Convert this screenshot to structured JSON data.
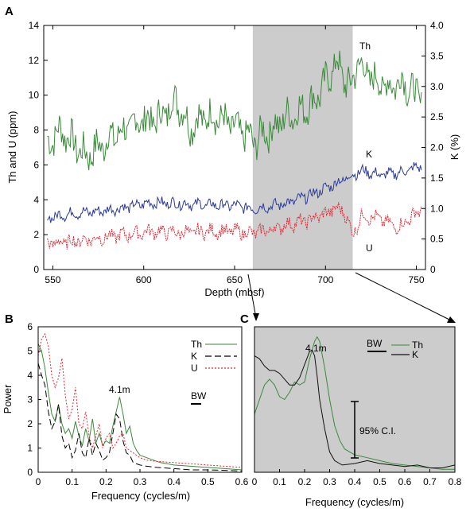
{
  "colors": {
    "th": "#3a8a3a",
    "k_a": "#2a3a9a",
    "k_c": "#111111",
    "u": "#e8242e",
    "shade": "#cccccc",
    "black": "#000000"
  },
  "chart_data": [
    {
      "panel": "A",
      "type": "line",
      "xlabel": "Depth (mbsf)",
      "ylabel": "Th and U (ppm)",
      "y2label": "K (%)",
      "xlim": [
        545,
        755
      ],
      "ylim": [
        0,
        14
      ],
      "y2lim": [
        0,
        4.0
      ],
      "xticks": [
        550,
        600,
        650,
        700,
        750
      ],
      "yticks": [
        0,
        2,
        4,
        6,
        8,
        10,
        12,
        14
      ],
      "y2ticks": [
        "0",
        "0.5",
        "1.0",
        "1.5",
        "2.0",
        "2.5",
        "3.0",
        "3.5",
        "4.0"
      ],
      "shaded_interval": [
        660,
        715
      ],
      "series": [
        {
          "name": "Th",
          "axis": "left",
          "color_key": "th",
          "x": [
            547,
            555,
            562,
            568,
            575,
            582,
            590,
            598,
            605,
            612,
            618,
            625,
            632,
            640,
            646,
            652,
            658,
            661,
            665,
            670,
            678,
            686,
            694,
            700,
            706,
            710,
            714,
            718,
            722,
            728,
            735,
            742,
            748,
            753
          ],
          "y": [
            7.3,
            8.0,
            7.2,
            6.5,
            7.0,
            7.6,
            8.0,
            8.6,
            8.5,
            9.0,
            9.8,
            8.2,
            8.7,
            8.8,
            8.4,
            8.0,
            7.6,
            7.3,
            7.8,
            8.0,
            8.7,
            9.1,
            9.7,
            10.7,
            11.9,
            11.0,
            10.4,
            12.0,
            11.3,
            10.8,
            10.5,
            10.9,
            10.2,
            9.8
          ]
        },
        {
          "name": "K",
          "axis": "right",
          "color_key": "k_a",
          "x": [
            547,
            560,
            575,
            590,
            605,
            620,
            635,
            650,
            660,
            670,
            680,
            690,
            700,
            710,
            720,
            730,
            740,
            753
          ],
          "y": [
            0.85,
            0.92,
            0.95,
            1.02,
            1.1,
            1.08,
            1.06,
            1.05,
            1.0,
            1.04,
            1.1,
            1.2,
            1.33,
            1.48,
            1.62,
            1.55,
            1.58,
            1.7
          ]
        },
        {
          "name": "U",
          "axis": "left",
          "color_key": "u",
          "x": [
            547,
            560,
            575,
            590,
            605,
            620,
            635,
            650,
            660,
            670,
            680,
            690,
            700,
            705,
            710,
            715,
            720,
            730,
            740,
            753
          ],
          "y": [
            1.5,
            1.6,
            1.8,
            2.0,
            2.2,
            2.1,
            2.2,
            2.2,
            2.1,
            2.3,
            2.6,
            2.8,
            3.2,
            3.5,
            3.4,
            2.0,
            3.1,
            2.9,
            2.4,
            3.5
          ]
        }
      ],
      "series_labels": [
        "Th",
        "K",
        "U"
      ]
    },
    {
      "panel": "B",
      "type": "line",
      "xlabel": "Frequency (cycles/m)",
      "ylabel": "Power",
      "xlim": [
        0,
        0.6
      ],
      "ylim": [
        0,
        6
      ],
      "xticks": [
        "0",
        "0.1",
        "0.2",
        "0.3",
        "0.4",
        "0.5",
        "0.6"
      ],
      "yticks": [
        0,
        1,
        2,
        3,
        4,
        5,
        6
      ],
      "legend": [
        "Th",
        "K",
        "U"
      ],
      "annotation_peak": "4.1m",
      "bandwidth_label": "BW",
      "series": [
        {
          "name": "Th",
          "color_key": "th",
          "x": [
            0,
            0.01,
            0.02,
            0.03,
            0.04,
            0.05,
            0.06,
            0.07,
            0.08,
            0.09,
            0.1,
            0.11,
            0.12,
            0.13,
            0.14,
            0.15,
            0.16,
            0.17,
            0.18,
            0.19,
            0.2,
            0.21,
            0.22,
            0.23,
            0.24,
            0.25,
            0.26,
            0.27,
            0.28,
            0.29,
            0.3,
            0.32,
            0.34,
            0.36,
            0.38,
            0.4,
            0.45,
            0.5,
            0.55,
            0.6
          ],
          "y": [
            5.3,
            5.0,
            4.3,
            3.3,
            2.4,
            2.1,
            2.8,
            2.0,
            1.6,
            1.8,
            1.4,
            2.1,
            1.5,
            1.1,
            1.8,
            1.3,
            2.2,
            1.2,
            1.6,
            1.1,
            1.3,
            1.2,
            1.9,
            2.5,
            3.1,
            2.4,
            1.6,
            1.9,
            1.2,
            0.9,
            0.7,
            0.6,
            0.5,
            0.4,
            0.35,
            0.3,
            0.25,
            0.2,
            0.15,
            0.1
          ]
        },
        {
          "name": "K",
          "color_key": "black",
          "x": [
            0,
            0.01,
            0.02,
            0.03,
            0.04,
            0.05,
            0.06,
            0.07,
            0.08,
            0.09,
            0.1,
            0.11,
            0.12,
            0.13,
            0.14,
            0.15,
            0.16,
            0.17,
            0.18,
            0.19,
            0.2,
            0.21,
            0.22,
            0.23,
            0.24,
            0.25,
            0.26,
            0.27,
            0.28,
            0.3,
            0.32,
            0.35,
            0.4,
            0.45,
            0.5,
            0.55,
            0.6
          ],
          "y": [
            4.5,
            4.0,
            3.6,
            2.5,
            1.8,
            2.1,
            2.8,
            1.5,
            1.0,
            1.2,
            0.6,
            0.9,
            1.6,
            0.8,
            0.6,
            1.4,
            0.7,
            1.2,
            0.9,
            0.5,
            0.6,
            0.8,
            1.6,
            2.4,
            2.2,
            1.3,
            0.8,
            0.7,
            0.4,
            0.3,
            0.25,
            0.2,
            0.15,
            0.1,
            0.1,
            0.08,
            0.05
          ]
        },
        {
          "name": "U",
          "color_key": "u",
          "x": [
            0,
            0.01,
            0.02,
            0.03,
            0.04,
            0.05,
            0.06,
            0.07,
            0.08,
            0.09,
            0.1,
            0.11,
            0.12,
            0.13,
            0.14,
            0.15,
            0.16,
            0.17,
            0.18,
            0.19,
            0.2,
            0.21,
            0.22,
            0.23,
            0.24,
            0.25,
            0.26,
            0.28,
            0.3,
            0.32,
            0.35,
            0.4,
            0.45,
            0.5,
            0.55,
            0.6
          ],
          "y": [
            4.8,
            5.5,
            5.7,
            5.2,
            4.0,
            3.5,
            3.9,
            4.7,
            3.2,
            2.2,
            2.6,
            3.5,
            2.0,
            1.8,
            2.5,
            1.5,
            1.0,
            1.5,
            2.0,
            1.0,
            1.4,
            1.6,
            1.0,
            1.2,
            1.5,
            1.6,
            1.0,
            0.8,
            0.6,
            0.5,
            0.45,
            0.4,
            0.35,
            0.3,
            0.25,
            0.2
          ]
        }
      ]
    },
    {
      "panel": "C",
      "type": "line",
      "xlabel": "Frequency (cycles/m)",
      "xlim": [
        0,
        0.8
      ],
      "xticks": [
        "0",
        "0.1",
        "0.2",
        "0.3",
        "0.4",
        "0.5",
        "0.6",
        "0.7",
        "0.8"
      ],
      "legend": [
        "Th",
        "K"
      ],
      "annotation_peak": "4.1m",
      "bandwidth_label": "BW",
      "ci_label": "95% C.I.",
      "series": [
        {
          "name": "Th",
          "color_key": "th",
          "x": [
            0,
            0.02,
            0.04,
            0.06,
            0.08,
            0.1,
            0.12,
            0.14,
            0.16,
            0.18,
            0.2,
            0.22,
            0.24,
            0.25,
            0.26,
            0.28,
            0.3,
            0.32,
            0.34,
            0.36,
            0.38,
            0.4,
            0.45,
            0.5,
            0.55,
            0.6,
            0.65,
            0.7,
            0.75,
            0.8
          ],
          "y": [
            0.4,
            0.5,
            0.6,
            0.64,
            0.6,
            0.52,
            0.5,
            0.55,
            0.62,
            0.6,
            0.62,
            0.78,
            0.9,
            0.93,
            0.9,
            0.72,
            0.5,
            0.32,
            0.22,
            0.16,
            0.14,
            0.12,
            0.1,
            0.08,
            0.06,
            0.05,
            0.04,
            0.03,
            0.02,
            0.02
          ]
        },
        {
          "name": "K",
          "color_key": "k_c",
          "x": [
            0,
            0.02,
            0.04,
            0.06,
            0.08,
            0.1,
            0.12,
            0.14,
            0.16,
            0.18,
            0.2,
            0.22,
            0.23,
            0.24,
            0.25,
            0.26,
            0.28,
            0.3,
            0.32,
            0.35,
            0.4,
            0.45,
            0.5,
            0.55,
            0.6,
            0.65,
            0.7,
            0.75,
            0.8
          ],
          "y": [
            0.8,
            0.78,
            0.73,
            0.7,
            0.7,
            0.68,
            0.64,
            0.6,
            0.6,
            0.65,
            0.74,
            0.83,
            0.84,
            0.8,
            0.66,
            0.5,
            0.3,
            0.14,
            0.08,
            0.05,
            0.06,
            0.08,
            0.06,
            0.05,
            0.04,
            0.05,
            0.03,
            0.03,
            0.05
          ]
        }
      ]
    }
  ]
}
